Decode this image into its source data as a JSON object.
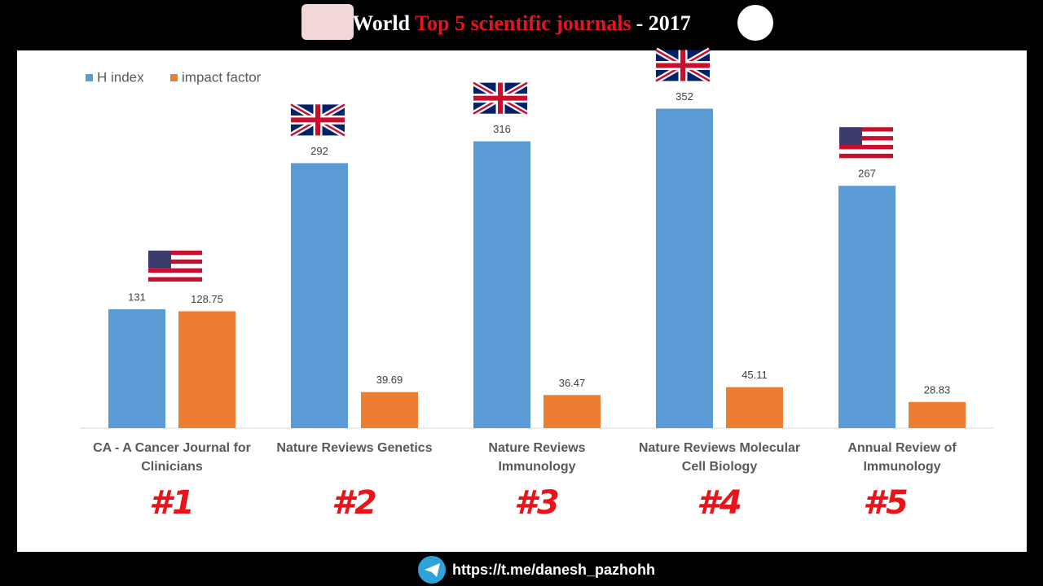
{
  "chart_data": {
    "type": "bar",
    "title": [
      "World",
      "Top 5 scientific journals",
      "- 2017"
    ],
    "categories": [
      "CA - A Cancer Journal for Clinicians",
      "Nature Reviews Genetics",
      "Nature Reviews Immunology",
      "Nature Reviews Molecular Cell Biology",
      "Annual Review of Immunology"
    ],
    "series": [
      {
        "name": "H index",
        "color": "#5b9bd5",
        "values": [
          131,
          292,
          316,
          352,
          267
        ]
      },
      {
        "name": "impact factor",
        "color": "#ed7d31",
        "values": [
          128.75,
          39.69,
          36.47,
          45.11,
          28.83
        ]
      }
    ],
    "ranks": [
      "#1",
      "#2",
      "#3",
      "#4",
      "#5"
    ],
    "ylim": [
      0,
      400
    ],
    "legend": "top-left",
    "grid": false
  },
  "footer": {
    "url": "https://t.me/danesh_pazhohh"
  }
}
